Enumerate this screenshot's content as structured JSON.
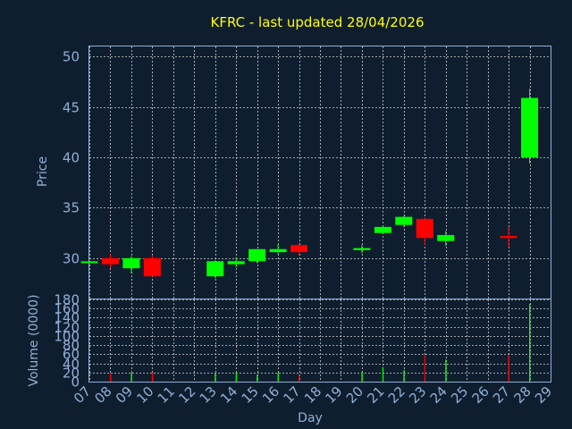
{
  "title": "KFRC - last updated 28/04/2026",
  "colors": {
    "background": "#0f1e2e",
    "up": "#00ff00",
    "down": "#ff0000",
    "frame": "#8fb0d8",
    "grid": "#d0d0d0",
    "title": "#ffff00"
  },
  "chart_data": [
    {
      "type": "candlestick",
      "ylabel": "Price",
      "ylim": [
        26,
        51
      ],
      "yticks": [
        30,
        35,
        40,
        45,
        50
      ],
      "grid": true,
      "x_days": [
        7,
        8,
        9,
        10,
        11,
        12,
        13,
        14,
        15,
        16,
        17,
        18,
        19,
        20,
        21,
        22,
        23,
        24,
        25,
        26,
        27,
        28,
        29
      ],
      "candles": [
        {
          "day": 7,
          "open": 29.6,
          "close": 29.6,
          "high": 29.6,
          "low": 29.6
        },
        {
          "day": 8,
          "open": 30.0,
          "close": 29.4,
          "high": 30.4,
          "low": 29.0
        },
        {
          "day": 9,
          "open": 29.0,
          "close": 30.0,
          "high": 30.2,
          "low": 28.5
        },
        {
          "day": 10,
          "open": 30.0,
          "close": 28.2,
          "high": 30.3,
          "low": 28.2
        },
        {
          "day": 13,
          "open": 28.2,
          "close": 29.7,
          "high": 29.8,
          "low": 28.0
        },
        {
          "day": 14,
          "open": 29.4,
          "close": 29.7,
          "high": 30.1,
          "low": 29.1
        },
        {
          "day": 15,
          "open": 29.7,
          "close": 30.9,
          "high": 30.9,
          "low": 29.5
        },
        {
          "day": 16,
          "open": 30.6,
          "close": 30.9,
          "high": 31.4,
          "low": 30.4
        },
        {
          "day": 17,
          "open": 31.3,
          "close": 30.6,
          "high": 31.4,
          "low": 30.3
        },
        {
          "day": 20,
          "open": 30.8,
          "close": 31.0,
          "high": 31.3,
          "low": 30.5
        },
        {
          "day": 21,
          "open": 32.5,
          "close": 33.1,
          "high": 33.2,
          "low": 32.4
        },
        {
          "day": 22,
          "open": 33.3,
          "close": 34.1,
          "high": 34.2,
          "low": 33.1
        },
        {
          "day": 23,
          "open": 33.9,
          "close": 32.0,
          "high": 34.0,
          "low": 31.3
        },
        {
          "day": 24,
          "open": 31.7,
          "close": 32.3,
          "high": 32.7,
          "low": 31.2
        },
        {
          "day": 27,
          "open": 32.2,
          "close": 32.0,
          "high": 33.1,
          "low": 31.1
        },
        {
          "day": 28,
          "open": 40.0,
          "close": 45.9,
          "high": 46.8,
          "low": 39.4
        }
      ]
    },
    {
      "type": "bar",
      "xlabel": "Day",
      "ylabel": "Volume (0000)",
      "ylim": [
        0,
        180
      ],
      "yticks": [
        0,
        20,
        40,
        60,
        80,
        100,
        120,
        140,
        160,
        180
      ],
      "x_tick_labels": [
        "07",
        "08",
        "09",
        "10",
        "11",
        "12",
        "13",
        "14",
        "15",
        "16",
        "17",
        "18",
        "19",
        "20",
        "21",
        "22",
        "23",
        "24",
        "25",
        "26",
        "27",
        "28",
        "29"
      ],
      "bars": [
        {
          "day": 8,
          "value": 18,
          "direction": "down"
        },
        {
          "day": 9,
          "value": 20,
          "direction": "up"
        },
        {
          "day": 10,
          "value": 20,
          "direction": "down"
        },
        {
          "day": 13,
          "value": 18,
          "direction": "up"
        },
        {
          "day": 14,
          "value": 20,
          "direction": "up"
        },
        {
          "day": 15,
          "value": 15,
          "direction": "up"
        },
        {
          "day": 16,
          "value": 20,
          "direction": "up"
        },
        {
          "day": 17,
          "value": 15,
          "direction": "down"
        },
        {
          "day": 20,
          "value": 22,
          "direction": "up"
        },
        {
          "day": 21,
          "value": 32,
          "direction": "up"
        },
        {
          "day": 22,
          "value": 25,
          "direction": "up"
        },
        {
          "day": 23,
          "value": 58,
          "direction": "down"
        },
        {
          "day": 24,
          "value": 48,
          "direction": "up"
        },
        {
          "day": 27,
          "value": 58,
          "direction": "down"
        },
        {
          "day": 28,
          "value": 170,
          "direction": "up"
        }
      ]
    }
  ]
}
